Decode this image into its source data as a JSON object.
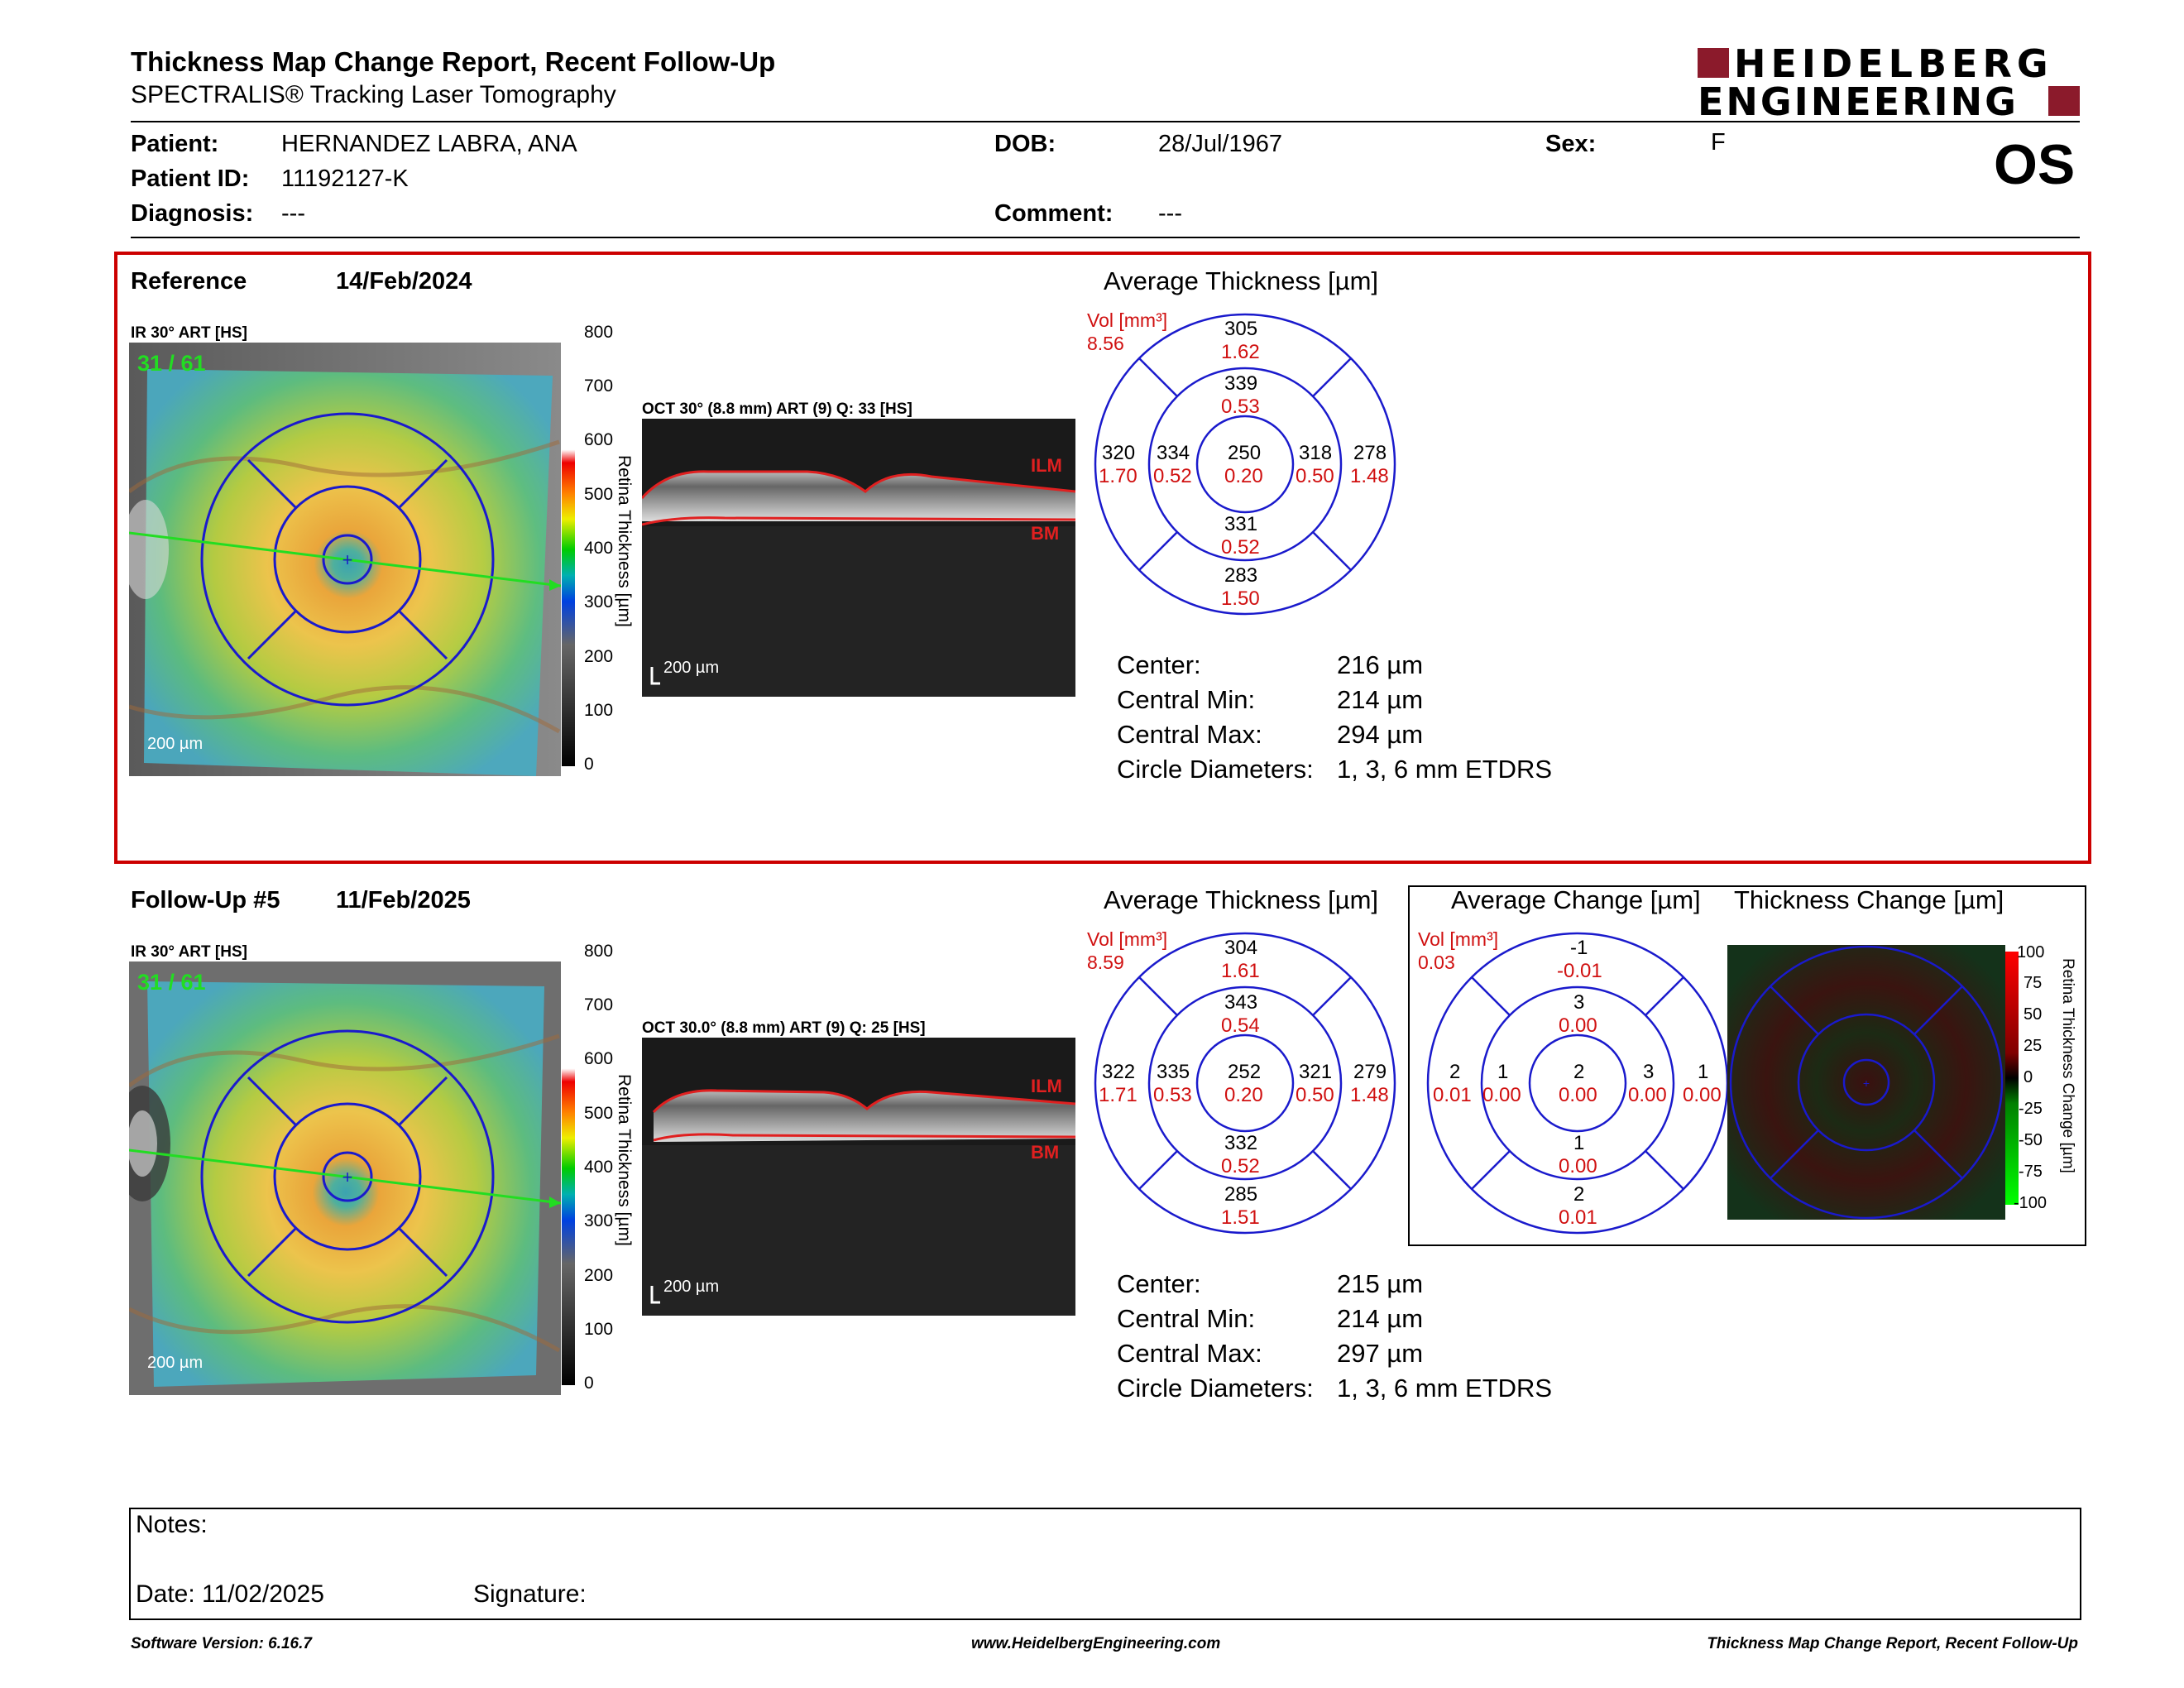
{
  "header": {
    "title": "Thickness Map Change Report, Recent Follow-Up",
    "subtitle": "SPECTRALIS® Tracking Laser Tomography",
    "logo_line1": "HEIDELBERG",
    "logo_line2": "ENGINEERING",
    "eye": "OS"
  },
  "patient": {
    "patient_label": "Patient:",
    "patient_name": "HERNANDEZ LABRA, ANA",
    "id_label": "Patient ID:",
    "id_value": "11192127-K",
    "diagnosis_label": "Diagnosis:",
    "diagnosis_value": "---",
    "dob_label": "DOB:",
    "dob_value": "28/Jul/1967",
    "comment_label": "Comment:",
    "comment_value": "---",
    "sex_label": "Sex:",
    "sex_value": "F"
  },
  "reference": {
    "label": "Reference",
    "date": "14/Feb/2024",
    "ir_label": "IR 30° ART [HS]",
    "ir_counter": "31 / 61",
    "ir_scale": "200 µm",
    "oct_label": "OCT 30° (8.8 mm) ART (9) Q: 33 [HS]",
    "oct_scale": "200 µm",
    "avg_title": "Average Thickness [µm]",
    "vol_label": "Vol [mm³]",
    "vol_value": "8.56",
    "sectors": {
      "outer_top": [
        "305",
        "1.62"
      ],
      "inner_top": [
        "339",
        "0.53"
      ],
      "outer_left": [
        "320",
        "1.70"
      ],
      "inner_left": [
        "334",
        "0.52"
      ],
      "center": [
        "250",
        "0.20"
      ],
      "inner_right": [
        "318",
        "0.50"
      ],
      "outer_right": [
        "278",
        "1.48"
      ],
      "inner_bottom": [
        "331",
        "0.52"
      ],
      "outer_bottom": [
        "283",
        "1.50"
      ]
    },
    "stats": {
      "center_label": "Center:",
      "center_value": "216 µm",
      "min_label": "Central Min:",
      "min_value": "214 µm",
      "max_label": "Central Max:",
      "max_value": "294 µm",
      "diam_label": "Circle Diameters:",
      "diam_value": "1, 3, 6 mm ETDRS"
    }
  },
  "followup": {
    "label": "Follow-Up #5",
    "date": "11/Feb/2025",
    "ir_label": "IR 30° ART [HS]",
    "ir_counter": "31 / 61",
    "ir_scale": "200 µm",
    "oct_label": "OCT 30.0° (8.8 mm) ART (9) Q: 25 [HS]",
    "oct_scale": "200 µm",
    "avg_title": "Average Thickness [µm]",
    "vol_label": "Vol [mm³]",
    "vol_value": "8.59",
    "sectors": {
      "outer_top": [
        "304",
        "1.61"
      ],
      "inner_top": [
        "343",
        "0.54"
      ],
      "outer_left": [
        "322",
        "1.71"
      ],
      "inner_left": [
        "335",
        "0.53"
      ],
      "center": [
        "252",
        "0.20"
      ],
      "inner_right": [
        "321",
        "0.50"
      ],
      "outer_right": [
        "279",
        "1.48"
      ],
      "inner_bottom": [
        "332",
        "0.52"
      ],
      "outer_bottom": [
        "285",
        "1.51"
      ]
    },
    "stats": {
      "center_label": "Center:",
      "center_value": "215 µm",
      "min_label": "Central Min:",
      "min_value": "214 µm",
      "max_label": "Central Max:",
      "max_value": "297 µm",
      "diam_label": "Circle Diameters:",
      "diam_value": "1, 3, 6 mm ETDRS"
    }
  },
  "change": {
    "avg_title": "Average Change [µm]",
    "map_title": "Thickness Change [µm]",
    "vol_label": "Vol [mm³]",
    "vol_value": "0.03",
    "sectors": {
      "outer_top": [
        "-1",
        "-0.01"
      ],
      "inner_top": [
        "3",
        "0.00"
      ],
      "outer_left": [
        "2",
        "0.01"
      ],
      "inner_left": [
        "1",
        "0.00"
      ],
      "center": [
        "2",
        "0.00"
      ],
      "inner_right": [
        "3",
        "0.00"
      ],
      "outer_right": [
        "1",
        "0.00"
      ],
      "inner_bottom": [
        "1",
        "0.00"
      ],
      "outer_bottom": [
        "2",
        "0.01"
      ]
    },
    "cbar_title": "Retina Thickness Change [µm]",
    "cbar_ticks": [
      "100",
      "75",
      "50",
      "25",
      "0",
      "-25",
      "-50",
      "-75",
      "-100"
    ]
  },
  "thickness_scale": {
    "title": "Retina Thickness [µm]",
    "ticks": [
      "800",
      "700",
      "600",
      "500",
      "400",
      "300",
      "200",
      "100",
      "0"
    ]
  },
  "oct_layers": {
    "top": "ILM",
    "bottom": "BM"
  },
  "notes": {
    "notes_label": "Notes:",
    "date_label": "Date: 11/02/2025",
    "signature_label": "Signature:"
  },
  "footer": {
    "left": "Software Version: 6.16.7",
    "center": "www.HeidelbergEngineering.com",
    "right": "Thickness Map Change Report, Recent Follow-Up"
  },
  "colors": {
    "panel_border": "#cc0000",
    "grid_blue": "#1a1acc",
    "value_red": "#d01010",
    "logo_red": "#8b1a2b"
  }
}
